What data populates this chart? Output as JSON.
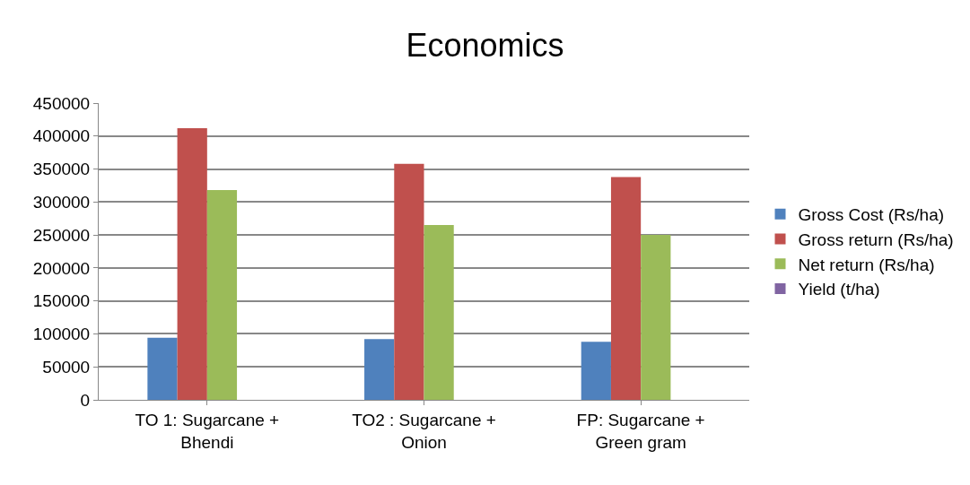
{
  "chart_data": {
    "type": "bar",
    "title": "Economics",
    "categories": [
      "TO 1: Sugarcane + Bhendi",
      "TO2 : Sugarcane + Onion",
      "FP: Sugarcane + Green gram"
    ],
    "series": [
      {
        "name": "Gross Cost (Rs/ha)",
        "color": "#4f81bd",
        "values": [
          94000,
          92000,
          88000
        ]
      },
      {
        "name": "Gross return (Rs/ha)",
        "color": "#c0504d",
        "values": [
          412000,
          358000,
          338000
        ]
      },
      {
        "name": "Net return (Rs/ha)",
        "color": "#9bbb59",
        "values": [
          318000,
          265000,
          250000
        ]
      },
      {
        "name": "Yield (t/ha)",
        "color": "#8064a2",
        "values": [
          0,
          0,
          0
        ]
      }
    ],
    "ylim": [
      0,
      450000
    ],
    "yticks": [
      0,
      50000,
      100000,
      150000,
      200000,
      250000,
      300000,
      350000,
      400000,
      450000
    ],
    "grid": "y",
    "legend": "right"
  }
}
